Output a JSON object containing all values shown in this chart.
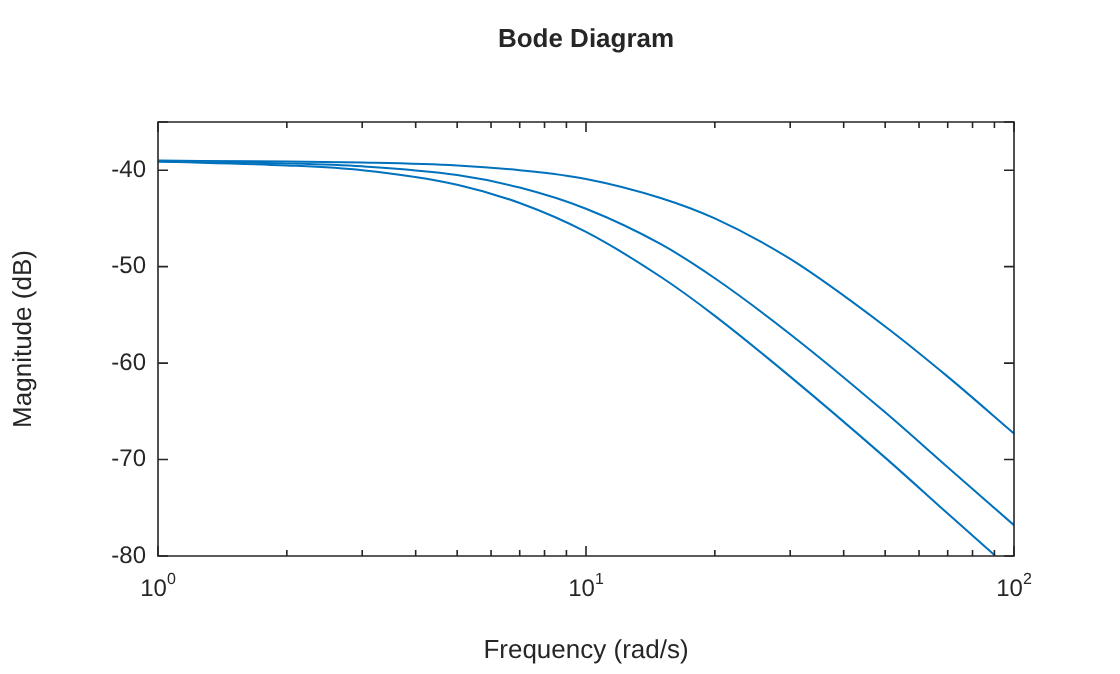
{
  "chart_data": {
    "type": "line",
    "title": "Bode Diagram",
    "xlabel": "Frequency (rad/s)",
    "ylabel": "Magnitude (dB)",
    "log": "x",
    "marker": "none",
    "line_style": "solid",
    "xlim": [
      1,
      100
    ],
    "ylim": [
      -80,
      -35
    ],
    "xticks": [
      {
        "value": 1,
        "label": "10$^{0}$"
      },
      {
        "value": 2,
        "label": null
      },
      {
        "value": 3,
        "label": null
      },
      {
        "value": 4,
        "label": null
      },
      {
        "value": 5,
        "label": null
      },
      {
        "value": 6,
        "label": null
      },
      {
        "value": 7,
        "label": null
      },
      {
        "value": 8,
        "label": null
      },
      {
        "value": 9,
        "label": null
      },
      {
        "value": 10,
        "label": "10$^{1}$"
      },
      {
        "value": 20,
        "label": null
      },
      {
        "value": 30,
        "label": null
      },
      {
        "value": 40,
        "label": null
      },
      {
        "value": 50,
        "label": null
      },
      {
        "value": 60,
        "label": null
      },
      {
        "value": 70,
        "label": null
      },
      {
        "value": 80,
        "label": null
      },
      {
        "value": 90,
        "label": null
      },
      {
        "value": 100,
        "label": "10$^{2}$"
      }
    ],
    "yticks": [
      -80,
      -70,
      -60,
      -50,
      -40,
      {
        "value": -35,
        "label": null
      }
    ],
    "series": [
      {
        "color": "#0072bd",
        "x": [
          1,
          2,
          3,
          5,
          7,
          10,
          15,
          20,
          30,
          50,
          70,
          100
        ],
        "values": [
          -39.0,
          -39.1,
          -39.2,
          -39.5,
          -40.0,
          -40.9,
          -42.9,
          -45.0,
          -49.2,
          -56.2,
          -61.4,
          -67.3
        ]
      },
      {
        "color": "#0072bd",
        "x": [
          1,
          2,
          3,
          5,
          7,
          10,
          15,
          20,
          30,
          50,
          70,
          100
        ],
        "values": [
          -39.1,
          -39.3,
          -39.6,
          -40.5,
          -41.8,
          -44.0,
          -47.7,
          -51.2,
          -57.0,
          -65.1,
          -70.8,
          -76.8
        ]
      },
      {
        "color": "#0072bd",
        "x": [
          1,
          2,
          3,
          5,
          7,
          10,
          15,
          20,
          30,
          50,
          70,
          90
        ],
        "values": [
          -39.1,
          -39.5,
          -40.0,
          -41.5,
          -43.4,
          -46.4,
          -51.1,
          -55.1,
          -61.4,
          -69.8,
          -75.6,
          -79.9
        ]
      }
    ]
  }
}
